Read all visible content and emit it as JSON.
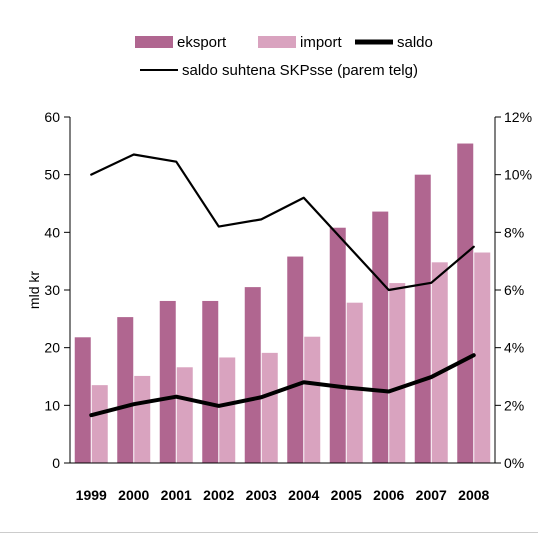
{
  "chart_data": {
    "type": "bar",
    "categories": [
      "1999",
      "2000",
      "2001",
      "2002",
      "2003",
      "2004",
      "2005",
      "2006",
      "2007",
      "2008"
    ],
    "series": [
      {
        "name": "eksport",
        "type": "bar",
        "axis": "left",
        "color": "#b06690",
        "values": [
          21.8,
          25.3,
          28.1,
          28.1,
          30.5,
          35.8,
          40.8,
          43.6,
          50.0,
          55.4
        ]
      },
      {
        "name": "import",
        "type": "bar",
        "axis": "left",
        "color": "#d9a3bf",
        "values": [
          13.5,
          15.1,
          16.6,
          18.3,
          19.1,
          21.9,
          27.8,
          31.2,
          34.8,
          36.5
        ]
      },
      {
        "name": "saldo",
        "type": "line",
        "axis": "left",
        "color": "#000000",
        "values": [
          8.3,
          10.2,
          11.5,
          9.9,
          11.4,
          14.0,
          13.1,
          12.4,
          14.9,
          18.7
        ]
      },
      {
        "name": "saldo suhtena SKPsse (parem telg)",
        "type": "line",
        "axis": "right",
        "color": "#000000",
        "values": [
          10.0,
          10.7,
          10.45,
          8.2,
          8.45,
          9.2,
          7.6,
          6.0,
          6.25,
          7.5
        ]
      }
    ],
    "ylabel": "mld kr",
    "ylim": [
      0,
      60
    ],
    "yticks": [
      "0",
      "10",
      "20",
      "30",
      "40",
      "50",
      "60"
    ],
    "y2lim": [
      0,
      12
    ],
    "y2ticks": [
      "0%",
      "2%",
      "4%",
      "6%",
      "8%",
      "10%",
      "12%"
    ],
    "grid": false,
    "legend_position": "top"
  }
}
